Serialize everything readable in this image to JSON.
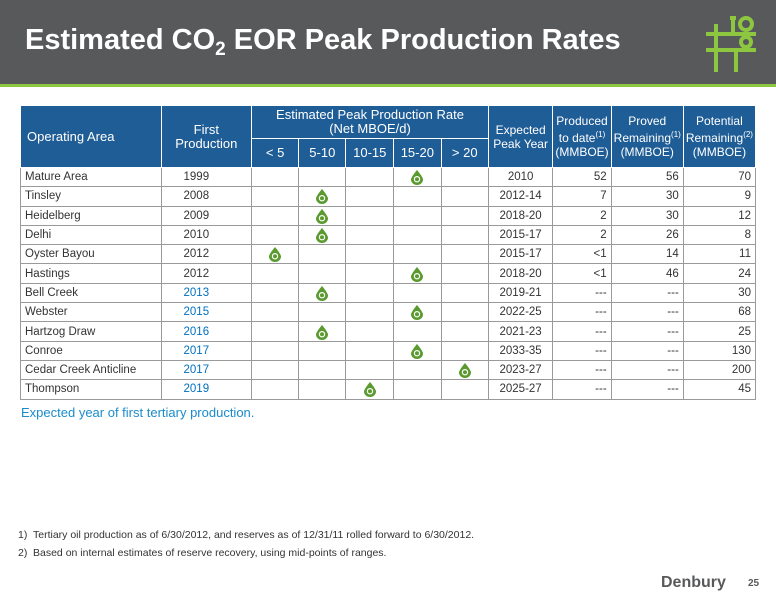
{
  "slide": {
    "title_main": "Estimated CO",
    "title_sub": "2",
    "title_rest": " EOR Peak Production Rates",
    "subnote": "Expected year of first tertiary production.",
    "page_number": "25",
    "brand": "Denbury"
  },
  "table": {
    "headers": {
      "area": "Operating Area",
      "first": "First Production",
      "rate_line1": "Estimated Peak Production Rate",
      "rate_line2": "(Net MBOE/d)",
      "expected": "Expected Peak Year",
      "produced": "Produced to date",
      "produced_sup": "(1)",
      "produced_unit": "(MMBOE)",
      "proved": "Proved Remaining",
      "proved_sup": "(1)",
      "proved_unit": "(MMBOE)",
      "potential": "Potential Remaining",
      "potential_sup": "(2)",
      "potential_unit": "(MMBOE)",
      "bins": [
        "< 5",
        "5-10",
        "10-15",
        "15-20",
        "> 20"
      ]
    },
    "rows": [
      {
        "area": "Mature Area",
        "first": "1999",
        "first_blue": false,
        "bin": 3,
        "year": "2010",
        "produced": "52",
        "proved": "56",
        "potential": "70"
      },
      {
        "area": "Tinsley",
        "first": "2008",
        "first_blue": false,
        "bin": 1,
        "year": "2012-14",
        "produced": "7",
        "proved": "30",
        "potential": "9"
      },
      {
        "area": "Heidelberg",
        "first": "2009",
        "first_blue": false,
        "bin": 1,
        "year": "2018-20",
        "produced": "2",
        "proved": "30",
        "potential": "12"
      },
      {
        "area": "Delhi",
        "first": "2010",
        "first_blue": false,
        "bin": 1,
        "year": "2015-17",
        "produced": "2",
        "proved": "26",
        "potential": "8"
      },
      {
        "area": "Oyster Bayou",
        "first": "2012",
        "first_blue": false,
        "bin": 0,
        "year": "2015-17",
        "produced": "<1",
        "proved": "14",
        "potential": "11"
      },
      {
        "area": "Hastings",
        "first": "2012",
        "first_blue": false,
        "bin": 3,
        "year": "2018-20",
        "produced": "<1",
        "proved": "46",
        "potential": "24"
      },
      {
        "area": "Bell Creek",
        "first": "2013",
        "first_blue": true,
        "bin": 1,
        "year": "2019-21",
        "produced": "---",
        "proved": "---",
        "potential": "30"
      },
      {
        "area": "Webster",
        "first": "2015",
        "first_blue": true,
        "bin": 3,
        "year": "2022-25",
        "produced": "---",
        "proved": "---",
        "potential": "68"
      },
      {
        "area": "Hartzog Draw",
        "first": "2016",
        "first_blue": true,
        "bin": 1,
        "year": "2021-23",
        "produced": "---",
        "proved": "---",
        "potential": "25"
      },
      {
        "area": "Conroe",
        "first": "2017",
        "first_blue": true,
        "bin": 3,
        "year": "2033-35",
        "produced": "---",
        "proved": "---",
        "potential": "130"
      },
      {
        "area": "Cedar Creek Anticline",
        "first": "2017",
        "first_blue": true,
        "bin": 4,
        "year": "2023-27",
        "produced": "---",
        "proved": "---",
        "potential": "200"
      },
      {
        "area": "Thompson",
        "first": "2019",
        "first_blue": true,
        "bin": 2,
        "year": "2025-27",
        "produced": "---",
        "proved": "---",
        "potential": "45"
      }
    ]
  },
  "footnotes": [
    {
      "num": "1)",
      "text": "Tertiary oil production as of 6/30/2012, and reserves as of 12/31/11 rolled forward to 6/30/2012."
    },
    {
      "num": "2)",
      "text": "Based on internal estimates of reserve recovery, using mid-points of ranges."
    }
  ],
  "colors": {
    "header_bg": "#1f5d96",
    "title_bar": "#58595b",
    "accent_green": "#8dc63f",
    "drop_green": "#5a9a2e",
    "first_year_blue": "#0070c0",
    "subnote_blue": "#1a8ccc"
  },
  "icons": {
    "drop": "oil-drop-icon",
    "logo": "pumpjack-icon"
  }
}
